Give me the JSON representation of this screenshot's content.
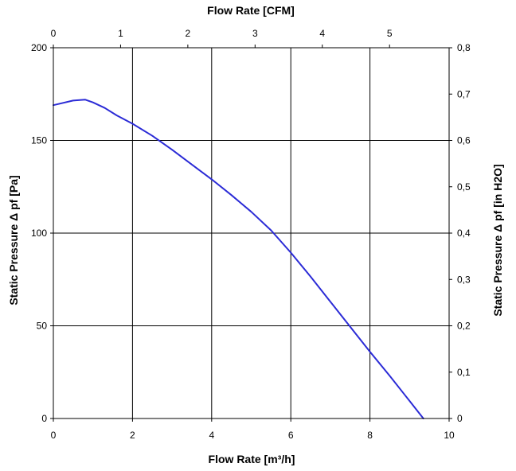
{
  "chart_data": {
    "type": "line",
    "title": "",
    "xlabel": "Flow Rate [m³/h]",
    "xlabel_top": "Flow Rate [CFM]",
    "ylabel": "Static Pressure Δ pf [Pa]",
    "ylabel_right": "Static Pressure Δ pf [in H2O]",
    "xlim": [
      0,
      10
    ],
    "ylim": [
      0,
      200
    ],
    "xlim_top": [
      0,
      5.886
    ],
    "ylim_right": [
      0,
      0.8
    ],
    "xticks": [
      "0",
      "2",
      "4",
      "6",
      "8",
      "10"
    ],
    "yticks": [
      "0",
      "50",
      "100",
      "150",
      "200"
    ],
    "xticks_top": [
      "0",
      "1",
      "2",
      "3",
      "4",
      "5"
    ],
    "yticks_right": [
      "0",
      "0,1",
      "0,2",
      "0,3",
      "0,4",
      "0,5",
      "0,6",
      "0,7",
      "0,8"
    ],
    "grid": true,
    "line_color": "#2b2bd6",
    "series": [
      {
        "x": [
          0,
          0.5,
          0.8,
          1.0,
          1.3,
          1.6,
          2.0,
          2.5,
          3.0,
          3.5,
          4.0,
          4.5,
          5.0,
          5.5,
          6.0,
          6.5,
          7.0,
          7.5,
          8.0,
          8.5,
          9.0,
          9.35
        ],
        "y": [
          169,
          171.5,
          172,
          170.5,
          167.5,
          163.5,
          159,
          152.5,
          145,
          137,
          129,
          120.5,
          111.5,
          101.5,
          89.5,
          76.5,
          63,
          49.5,
          36,
          23,
          9.5,
          0
        ]
      }
    ]
  }
}
